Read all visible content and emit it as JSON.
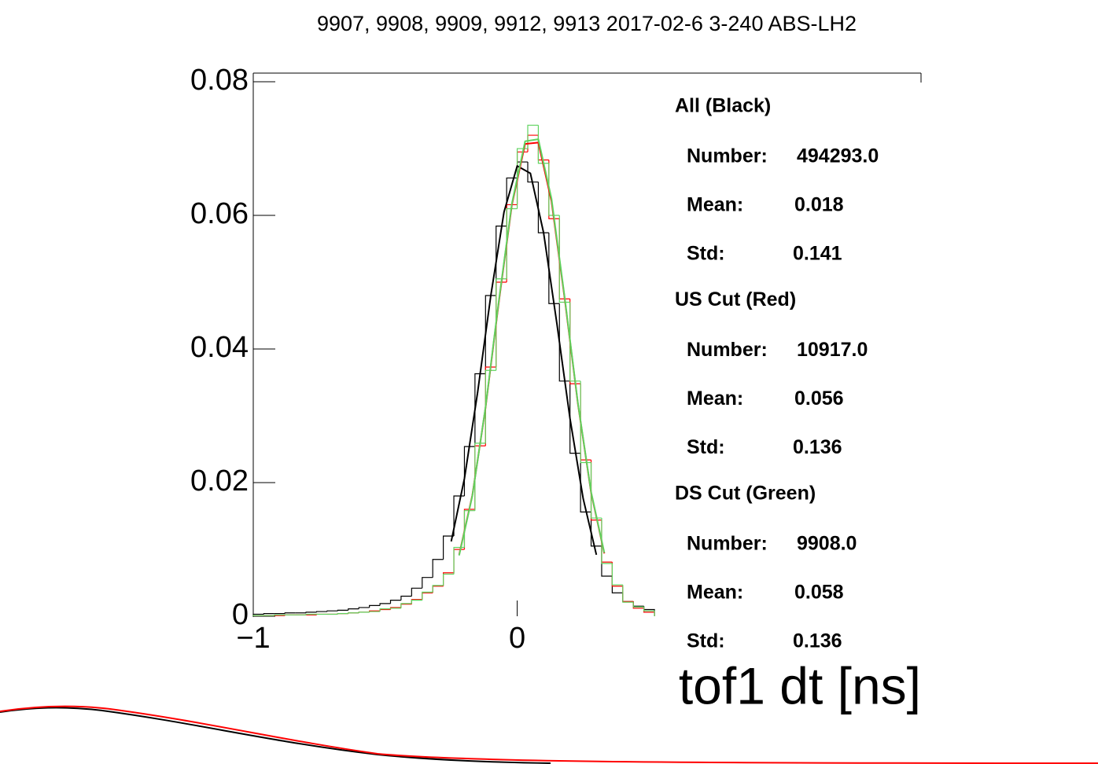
{
  "chart_data": {
    "type": "histogram",
    "title": "9907, 9908, 9909, 9912, 9913 2017-02-6 3-240 ABS-LH2",
    "x_label": "tof1 dt [ns]",
    "xlim": [
      -1,
      1.53
    ],
    "ylim": [
      0,
      0.0813
    ],
    "xticks": [
      {
        "value": -1,
        "label": "−1"
      },
      0
    ],
    "yticks": [
      0,
      0.02,
      0.04,
      0.06,
      0.08
    ],
    "bins": [
      -1,
      -0.96,
      -0.92,
      -0.88,
      -0.84,
      -0.8,
      -0.76,
      -0.72,
      -0.68,
      -0.64,
      -0.6,
      -0.56,
      -0.52,
      -0.48,
      -0.44,
      -0.4,
      -0.36,
      -0.32,
      -0.28,
      -0.24,
      -0.2,
      -0.16,
      -0.12,
      -0.08,
      -0.04,
      0,
      0.04,
      0.08,
      0.12,
      0.16,
      0.2,
      0.24,
      0.28,
      0.32,
      0.36,
      0.4,
      0.44,
      0.48,
      0.52
    ],
    "series": [
      {
        "color": "#000000",
        "values": [
          0.0003,
          0.0004,
          0.0004,
          0.0005,
          0.0005,
          0.0006,
          0.0007,
          0.0008,
          0.0009,
          0.0011,
          0.0013,
          0.0016,
          0.0019,
          0.0024,
          0.003,
          0.0042,
          0.0058,
          0.0085,
          0.012,
          0.018,
          0.0254,
          0.0363,
          0.048,
          0.0584,
          0.0656,
          0.068,
          0.065,
          0.0574,
          0.0468,
          0.0352,
          0.0244,
          0.0156,
          0.0105,
          0.006,
          0.0035,
          0.0022,
          0.0015,
          0.001
        ]
      },
      {
        "color": "#ff0000",
        "values": [
          0.0001,
          0.0001,
          0.0001,
          0.0002,
          0.0002,
          0.0002,
          0.0003,
          0.0003,
          0.0004,
          0.0005,
          0.0006,
          0.0008,
          0.001,
          0.0013,
          0.0018,
          0.0025,
          0.0035,
          0.0045,
          0.0065,
          0.01,
          0.016,
          0.0255,
          0.0373,
          0.05,
          0.0616,
          0.0695,
          0.072,
          0.0683,
          0.0595,
          0.0475,
          0.0348,
          0.0234,
          0.0144,
          0.0081,
          0.0045,
          0.0022,
          0.0012,
          0.0006
        ]
      },
      {
        "color": "#5fd35f",
        "values": [
          0.0001,
          0.0001,
          0.0002,
          0.0002,
          0.0002,
          0.0003,
          0.0003,
          0.0003,
          0.0004,
          0.0005,
          0.0006,
          0.0007,
          0.0011,
          0.0012,
          0.0019,
          0.0024,
          0.0036,
          0.0046,
          0.0063,
          0.0103,
          0.0158,
          0.0259,
          0.0368,
          0.0505,
          0.061,
          0.07,
          0.0735,
          0.0678,
          0.06,
          0.047,
          0.0352,
          0.023,
          0.0147,
          0.0079,
          0.0047,
          0.0021,
          0.0014,
          0.0008
        ]
      }
    ],
    "fits": [
      {
        "color": "#000000",
        "x": [
          -0.25,
          -0.2,
          -0.15,
          -0.1,
          -0.05,
          0,
          0.05,
          0.1,
          0.15,
          0.2,
          0.25,
          0.3
        ],
        "values": [
          0.0112,
          0.0206,
          0.0335,
          0.048,
          0.0605,
          0.0674,
          0.0663,
          0.0574,
          0.0439,
          0.0296,
          0.0176,
          0.0092
        ]
      },
      {
        "color": "#ff0000",
        "x": [
          -0.22,
          -0.17,
          -0.12,
          -0.07,
          -0.02,
          0.03,
          0.08,
          0.13,
          0.18,
          0.23,
          0.28,
          0.33
        ],
        "values": [
          0.0092,
          0.0181,
          0.0312,
          0.0469,
          0.0616,
          0.0707,
          0.0709,
          0.0621,
          0.0475,
          0.0318,
          0.0185,
          0.0094
        ]
      },
      {
        "color": "#5fd35f",
        "x": [
          -0.22,
          -0.17,
          -0.12,
          -0.07,
          -0.02,
          0.03,
          0.08,
          0.13,
          0.18,
          0.23,
          0.28,
          0.33
        ],
        "values": [
          0.0091,
          0.018,
          0.0313,
          0.0471,
          0.0618,
          0.0711,
          0.0714,
          0.0625,
          0.0477,
          0.0319,
          0.0186,
          0.0095
        ]
      }
    ]
  },
  "stats": [
    {
      "heading": "All (Black)",
      "rows": [
        {
          "label": "Number:",
          "value": "494293.0"
        },
        {
          "label": "Mean:",
          "value": "0.018"
        },
        {
          "label": "Std:",
          "value": "0.141"
        }
      ]
    },
    {
      "heading": "US Cut (Red)",
      "rows": [
        {
          "label": "Number:",
          "value": "10917.0"
        },
        {
          "label": "Mean:",
          "value": "0.056"
        },
        {
          "label": "Std:",
          "value": "0.136"
        }
      ]
    },
    {
      "heading": "DS Cut (Green)",
      "rows": [
        {
          "label": "Number:",
          "value": "9908.0"
        },
        {
          "label": "Mean:",
          "value": "0.058"
        },
        {
          "label": "Std:",
          "value": "0.136"
        }
      ]
    }
  ]
}
